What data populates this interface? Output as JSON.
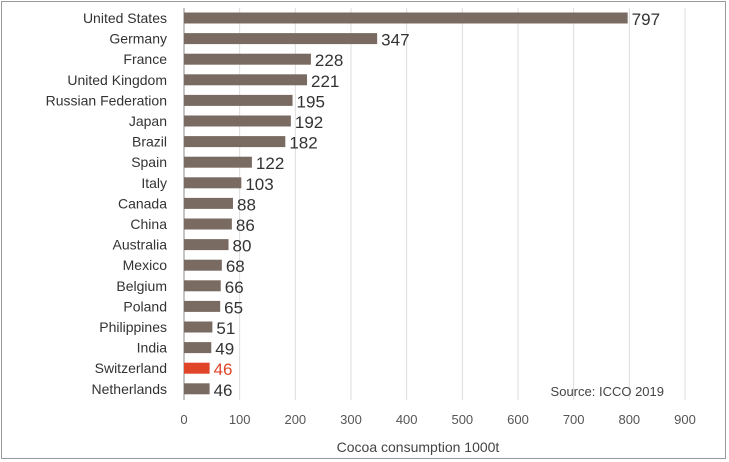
{
  "chart_data": {
    "type": "bar",
    "orientation": "horizontal",
    "categories": [
      "United States",
      "Germany",
      "France",
      "United Kingdom",
      "Russian Federation",
      "Japan",
      "Brazil",
      "Spain",
      "Italy",
      "Canada",
      "China",
      "Australia",
      "Mexico",
      "Belgium",
      "Poland",
      "Philippines",
      "India",
      "Switzerland",
      "Netherlands"
    ],
    "values": [
      797,
      347,
      228,
      221,
      195,
      192,
      182,
      122,
      103,
      88,
      86,
      80,
      68,
      66,
      65,
      51,
      49,
      46,
      46
    ],
    "value_labels": [
      "797",
      "347",
      "228",
      "221",
      "195",
      "192",
      "182",
      "122",
      "103",
      "88",
      "86",
      "80",
      "68",
      "66",
      "65",
      "51",
      "49",
      "46",
      "46"
    ],
    "highlight_category": "Switzerland",
    "xlabel": "Cocoa consumption  1000t",
    "ylabel": "",
    "xlim": [
      0,
      900
    ],
    "xticks": [
      0,
      100,
      200,
      300,
      400,
      500,
      600,
      700,
      800,
      900
    ],
    "xtick_labels": [
      "0",
      "100",
      "200",
      "300",
      "400",
      "500",
      "600",
      "700",
      "800",
      "900"
    ],
    "grid": "vertical",
    "source": "Source: ICCO 2019",
    "colors": {
      "bar": "#7a6b62",
      "highlight": "#e0452a",
      "grid": "#dddddd",
      "axis": "#888888"
    }
  }
}
